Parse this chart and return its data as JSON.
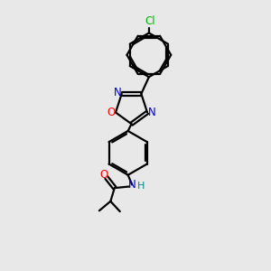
{
  "background_color": "#e8e8e8",
  "bond_color": "#000000",
  "atom_colors": {
    "N": "#0000cc",
    "O": "#ff0000",
    "Cl": "#00bb00",
    "H": "#008888",
    "C": "#000000"
  },
  "figsize": [
    3.0,
    3.0
  ],
  "dpi": 100
}
